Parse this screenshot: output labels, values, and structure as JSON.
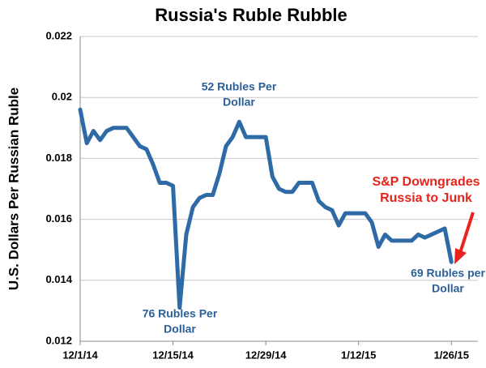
{
  "chart_data": {
    "type": "line",
    "title": "Russia's Ruble Rubble",
    "y_label": "U.S. Dollars Per Russian Ruble",
    "x": [
      "12/1/14",
      "12/2/14",
      "12/3/14",
      "12/4/14",
      "12/5/14",
      "12/6/14",
      "12/7/14",
      "12/8/14",
      "12/9/14",
      "12/10/14",
      "12/11/14",
      "12/12/14",
      "12/13/14",
      "12/14/14",
      "12/15/14",
      "12/16/14",
      "12/17/14",
      "12/18/14",
      "12/19/14",
      "12/20/14",
      "12/21/14",
      "12/22/14",
      "12/23/14",
      "12/24/14",
      "12/25/14",
      "12/26/14",
      "12/27/14",
      "12/28/14",
      "12/29/14",
      "12/30/14",
      "12/31/14",
      "1/1/15",
      "1/2/15",
      "1/3/15",
      "1/4/15",
      "1/5/15",
      "1/6/15",
      "1/7/15",
      "1/8/15",
      "1/9/15",
      "1/10/15",
      "1/11/15",
      "1/12/15",
      "1/13/15",
      "1/14/15",
      "1/15/15",
      "1/16/15",
      "1/17/15",
      "1/18/15",
      "1/19/15",
      "1/20/15",
      "1/21/15",
      "1/22/15",
      "1/23/15",
      "1/24/15",
      "1/25/15",
      "1/26/15"
    ],
    "series": [
      {
        "name": "USD per RUB",
        "color": "#2e6ba6",
        "values": [
          0.0196,
          0.0185,
          0.0189,
          0.0186,
          0.0189,
          0.019,
          0.019,
          0.019,
          0.0187,
          0.0184,
          0.0183,
          0.0178,
          0.0172,
          0.0172,
          0.0171,
          0.0131,
          0.0155,
          0.0164,
          0.0167,
          0.0168,
          0.0168,
          0.0175,
          0.0184,
          0.0187,
          0.0192,
          0.0187,
          0.0187,
          0.0187,
          0.0187,
          0.0174,
          0.017,
          0.0169,
          0.0169,
          0.0172,
          0.0172,
          0.0172,
          0.0166,
          0.0164,
          0.0163,
          0.0158,
          0.0162,
          0.0162,
          0.0162,
          0.0162,
          0.0159,
          0.0151,
          0.0155,
          0.0153,
          0.0153,
          0.0153,
          0.0153,
          0.0155,
          0.0154,
          0.0155,
          0.0156,
          0.0157,
          0.0146
        ]
      }
    ],
    "xlim": [
      "12/1/14",
      "1/30/15"
    ],
    "xticks": [
      "12/1/14",
      "12/15/14",
      "12/29/14",
      "1/12/15",
      "1/26/15"
    ],
    "ylim": [
      0.012,
      0.022
    ],
    "yticks": [
      0.012,
      0.014,
      0.016,
      0.018,
      0.02,
      0.022
    ],
    "grid": true,
    "annotations": [
      {
        "lines": [
          "52 Rubles Per",
          "Dollar"
        ]
      },
      {
        "lines": [
          "76 Rubles Per",
          "Dollar"
        ]
      },
      {
        "lines": [
          "69 Rubles per",
          "Dollar"
        ]
      },
      {
        "lines": [
          "S&P Downgrades",
          "Russia to Junk"
        ]
      }
    ]
  }
}
